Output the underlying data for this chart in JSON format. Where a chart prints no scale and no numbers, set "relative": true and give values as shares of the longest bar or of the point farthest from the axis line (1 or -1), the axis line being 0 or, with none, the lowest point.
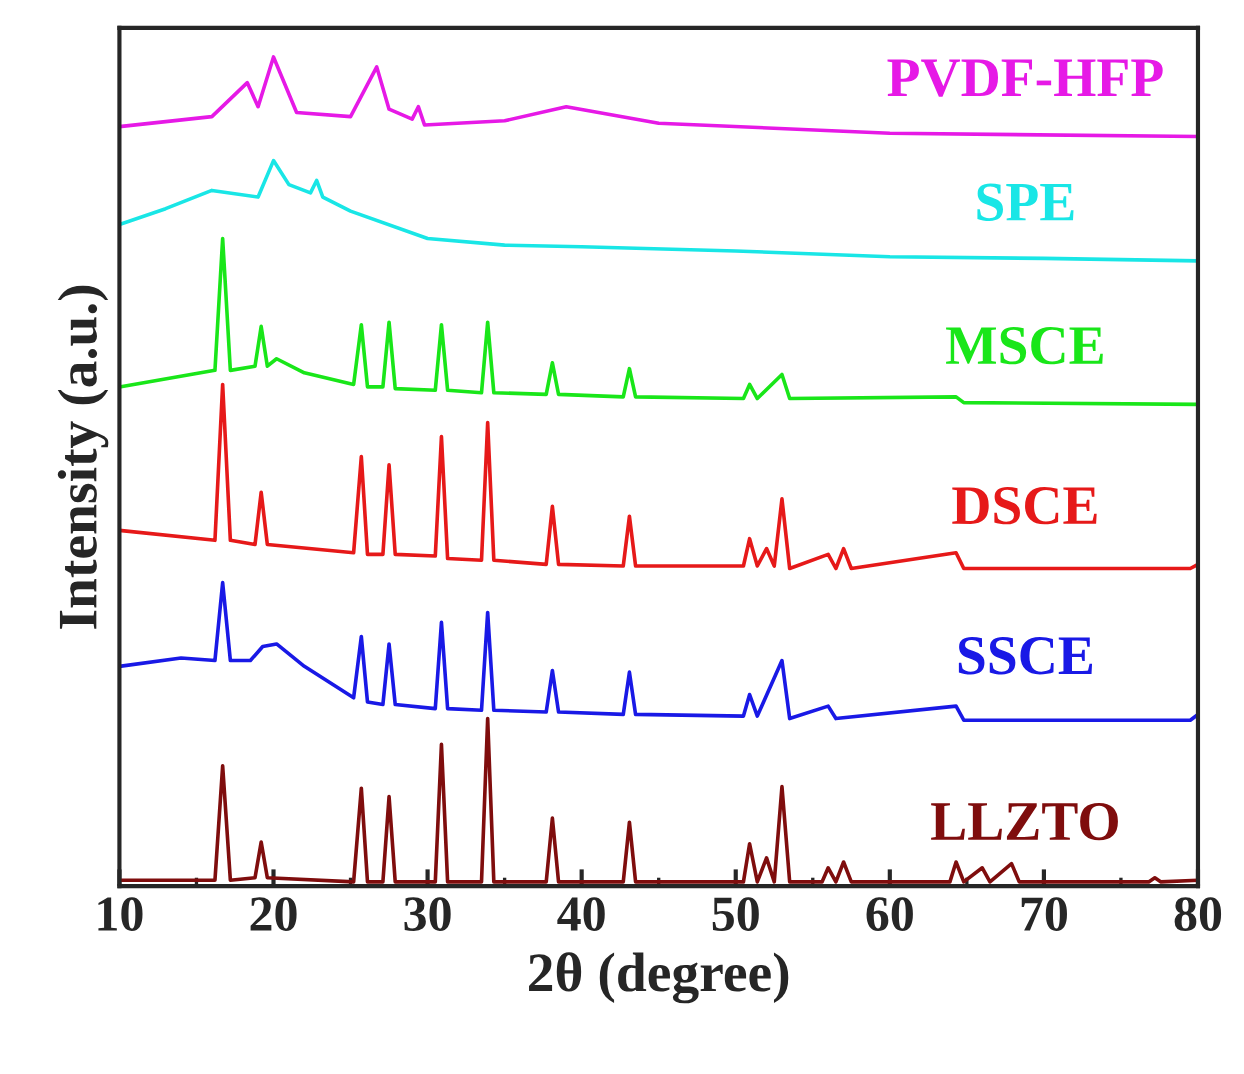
{
  "chart_data": {
    "type": "line",
    "relative": true,
    "xlabel": "2θ (degree)",
    "ylabel": "Intensity (a.u.)",
    "xlim": [
      10,
      80
    ],
    "xticks": [
      10,
      20,
      30,
      40,
      50,
      60,
      70,
      80
    ],
    "legend": false,
    "grid": false,
    "marker": "none",
    "line_style": "solid",
    "series": [
      {
        "name": "PVDF-HFP",
        "color": "#e619e6",
        "x": [
          10,
          16,
          18.3,
          19,
          20,
          21.5,
          25,
          26.7,
          27.5,
          29,
          29.4,
          29.8,
          35,
          39,
          45,
          60,
          80
        ],
        "values": [
          0.916,
          0.928,
          0.969,
          0.94,
          1.0,
          0.933,
          0.928,
          0.988,
          0.937,
          0.925,
          0.94,
          0.918,
          0.923,
          0.94,
          0.92,
          0.908,
          0.904
        ]
      },
      {
        "name": "SPE",
        "color": "#19e6e6",
        "x": [
          10,
          13,
          16,
          19,
          20,
          21,
          22.4,
          22.8,
          23.2,
          25,
          30,
          35,
          40,
          50,
          60,
          70,
          80
        ],
        "values": [
          0.798,
          0.817,
          0.839,
          0.831,
          0.875,
          0.846,
          0.836,
          0.851,
          0.831,
          0.814,
          0.781,
          0.773,
          0.771,
          0.766,
          0.759,
          0.757,
          0.754
        ]
      },
      {
        "name": "MSCE",
        "color": "#19e619",
        "x": [
          10,
          16.2,
          16.7,
          17.2,
          18.8,
          19.2,
          19.6,
          20.2,
          22,
          25.2,
          25.7,
          26.1,
          27.1,
          27.5,
          27.9,
          30.5,
          30.9,
          31.3,
          33.5,
          33.9,
          34.3,
          37.7,
          38.1,
          38.5,
          42.7,
          43.1,
          43.5,
          50.5,
          50.9,
          51.4,
          53.0,
          53.5,
          64.3,
          64.8,
          80
        ],
        "values": [
          0.602,
          0.622,
          0.781,
          0.622,
          0.627,
          0.675,
          0.627,
          0.636,
          0.619,
          0.605,
          0.677,
          0.602,
          0.602,
          0.68,
          0.6,
          0.598,
          0.677,
          0.598,
          0.595,
          0.68,
          0.595,
          0.593,
          0.631,
          0.593,
          0.59,
          0.624,
          0.59,
          0.588,
          0.605,
          0.588,
          0.617,
          0.588,
          0.59,
          0.583,
          0.581
        ]
      },
      {
        "name": "DSCE",
        "color": "#e61919",
        "x": [
          10,
          16.2,
          16.7,
          17.2,
          18.8,
          19.2,
          19.6,
          25.2,
          25.7,
          26.1,
          27.1,
          27.5,
          27.9,
          30.5,
          30.9,
          31.3,
          33.5,
          33.9,
          34.3,
          37.7,
          38.1,
          38.5,
          42.7,
          43.1,
          43.5,
          50.5,
          50.9,
          51.4,
          52.0,
          52.5,
          53.0,
          53.5,
          56.0,
          56.5,
          57.0,
          57.5,
          64.3,
          64.8,
          79.5,
          80
        ],
        "values": [
          0.429,
          0.417,
          0.605,
          0.417,
          0.412,
          0.475,
          0.412,
          0.402,
          0.518,
          0.4,
          0.4,
          0.508,
          0.4,
          0.398,
          0.542,
          0.395,
          0.393,
          0.559,
          0.393,
          0.388,
          0.458,
          0.388,
          0.386,
          0.446,
          0.386,
          0.386,
          0.419,
          0.386,
          0.407,
          0.386,
          0.467,
          0.383,
          0.4,
          0.383,
          0.407,
          0.383,
          0.402,
          0.383,
          0.383,
          0.388
        ]
      },
      {
        "name": "SSCE",
        "color": "#1919e6",
        "x": [
          10,
          14,
          16.2,
          16.7,
          17.2,
          18.5,
          19.3,
          20.2,
          22,
          25.2,
          25.7,
          26.1,
          27.1,
          27.5,
          27.9,
          30.5,
          30.9,
          31.3,
          33.5,
          33.9,
          34.3,
          37.7,
          38.1,
          38.5,
          42.7,
          43.1,
          43.5,
          50.5,
          50.9,
          51.4,
          53.0,
          53.5,
          56.0,
          56.5,
          64.3,
          64.8,
          79.5,
          80
        ],
        "values": [
          0.265,
          0.275,
          0.272,
          0.366,
          0.272,
          0.272,
          0.289,
          0.292,
          0.265,
          0.227,
          0.301,
          0.222,
          0.219,
          0.292,
          0.219,
          0.214,
          0.318,
          0.214,
          0.212,
          0.33,
          0.212,
          0.21,
          0.26,
          0.21,
          0.207,
          0.258,
          0.207,
          0.205,
          0.231,
          0.205,
          0.272,
          0.202,
          0.217,
          0.202,
          0.217,
          0.2,
          0.2,
          0.207
        ]
      },
      {
        "name": "LLZTO",
        "color": "#7f0d0d",
        "x": [
          10,
          16.2,
          16.7,
          17.2,
          18.8,
          19.2,
          19.6,
          25.2,
          25.7,
          26.1,
          27.1,
          27.5,
          27.9,
          30.5,
          30.9,
          31.3,
          33.5,
          33.9,
          34.3,
          37.7,
          38.1,
          38.5,
          42.7,
          43.1,
          43.5,
          50.5,
          50.9,
          51.4,
          52.0,
          52.5,
          53.0,
          53.5,
          55.6,
          56.0,
          56.5,
          57.0,
          57.5,
          63.9,
          64.3,
          64.8,
          66.0,
          66.5,
          67.9,
          68.4,
          76.8,
          77.2,
          77.6,
          80
        ],
        "values": [
          0.007,
          0.007,
          0.145,
          0.007,
          0.01,
          0.053,
          0.01,
          0.005,
          0.118,
          0.005,
          0.005,
          0.108,
          0.005,
          0.005,
          0.171,
          0.005,
          0.005,
          0.202,
          0.005,
          0.005,
          0.082,
          0.005,
          0.005,
          0.077,
          0.005,
          0.005,
          0.051,
          0.005,
          0.034,
          0.005,
          0.12,
          0.005,
          0.005,
          0.022,
          0.005,
          0.029,
          0.005,
          0.005,
          0.029,
          0.005,
          0.022,
          0.005,
          0.027,
          0.005,
          0.005,
          0.01,
          0.005,
          0.007
        ]
      }
    ]
  }
}
